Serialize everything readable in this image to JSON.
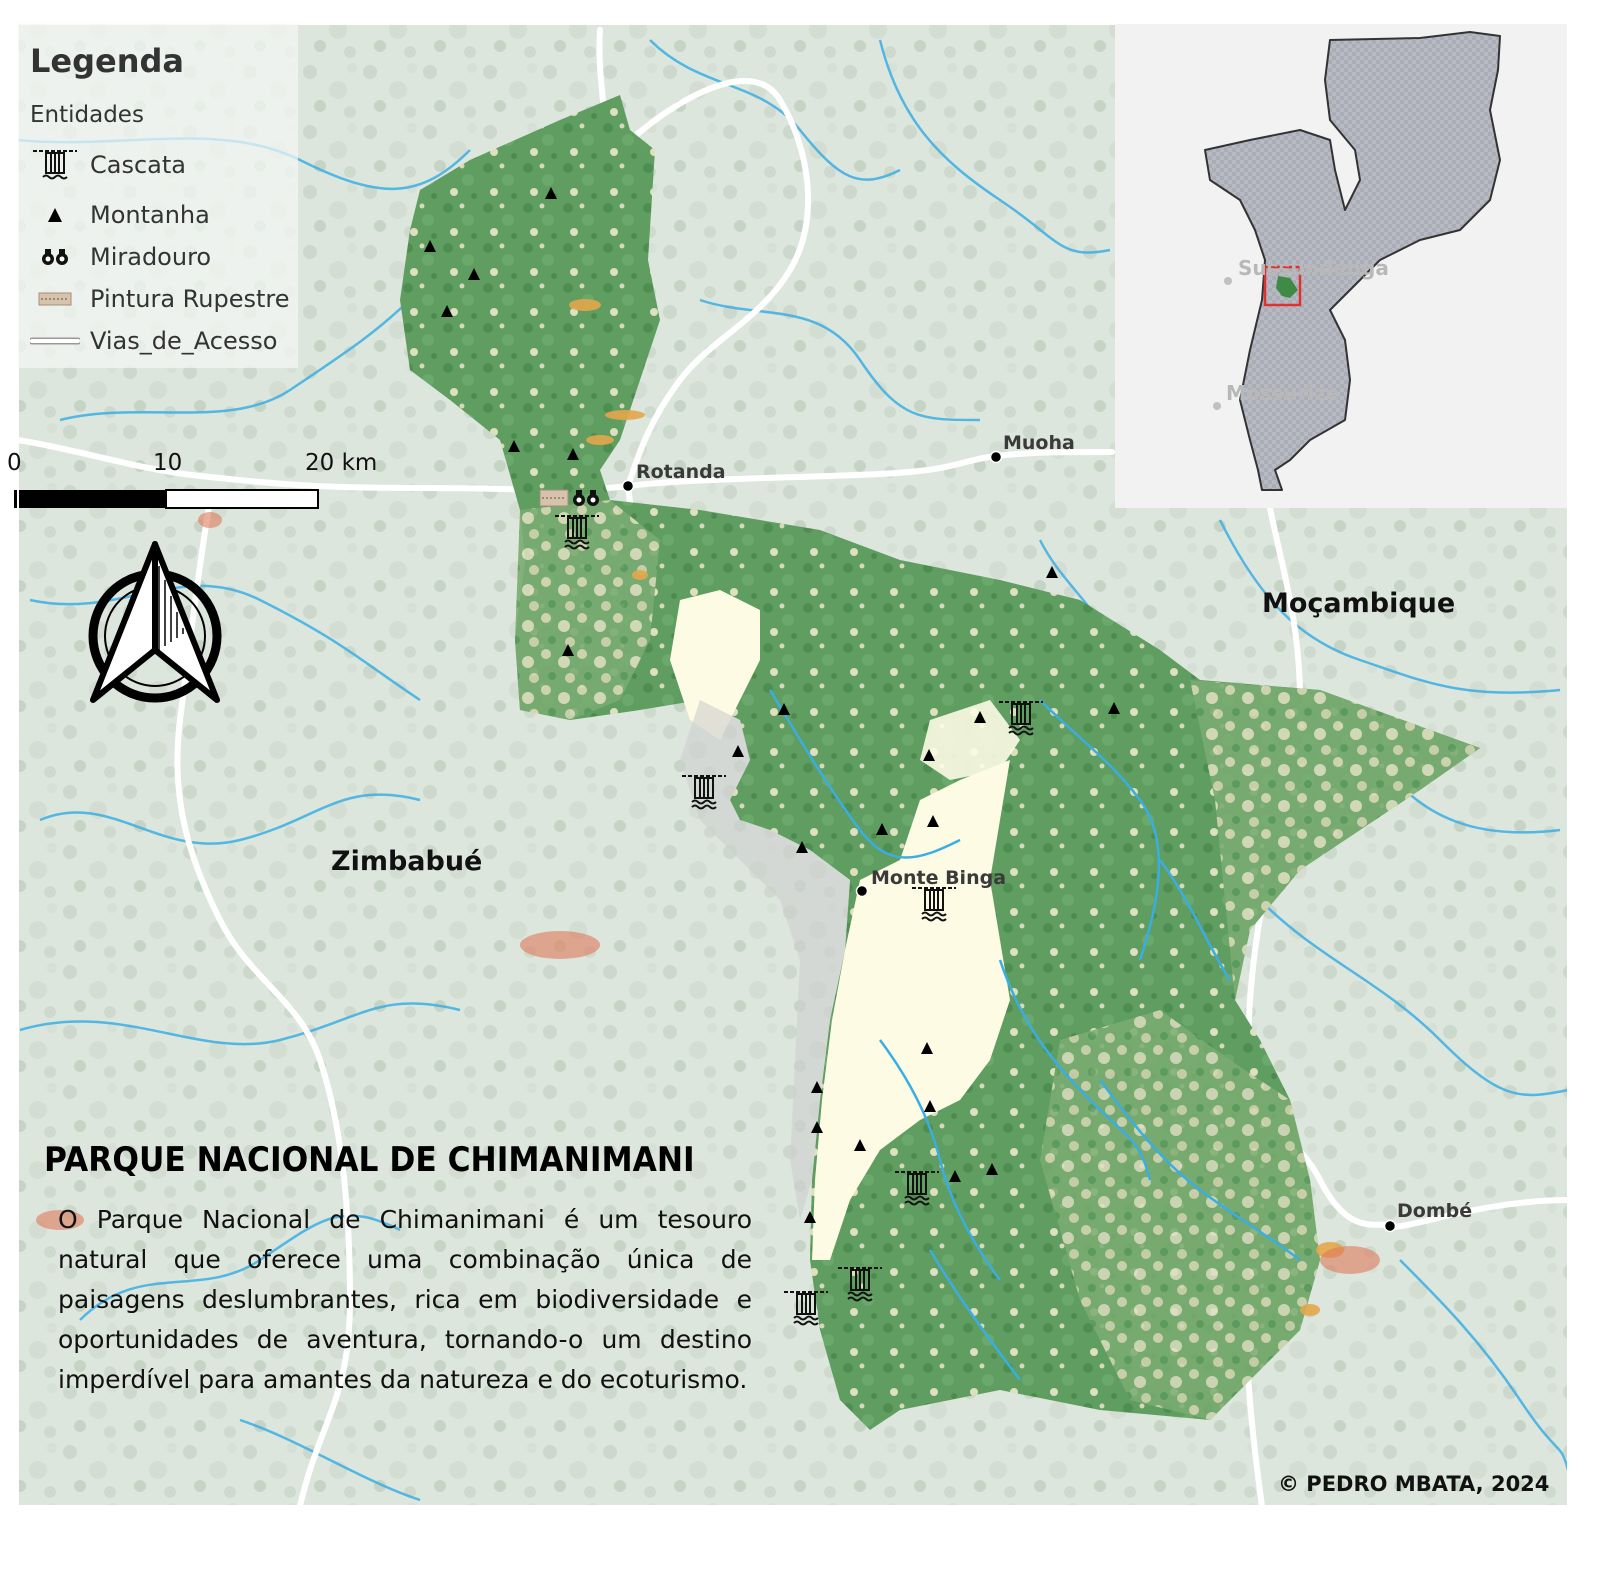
{
  "legend": {
    "title": "Legenda",
    "subtitle": "Entidades",
    "items": [
      {
        "label": "Cascata",
        "icon": "waterfall-icon"
      },
      {
        "label": "Montanha",
        "icon": "mountain-icon"
      },
      {
        "label": "Miradouro",
        "icon": "binoculars-icon"
      },
      {
        "label": "Pintura Rupestre",
        "icon": "rock-painting-icon"
      },
      {
        "label": "Vias_de_Acesso",
        "icon": "road-line-icon"
      }
    ]
  },
  "scale_bar": {
    "labels": [
      "0",
      "10",
      "20 km"
    ]
  },
  "places": {
    "rotanda": "Rotanda",
    "muoha": "Muoha",
    "monte_binga": "Monte Binga",
    "dombe": "Dombé"
  },
  "countries": {
    "mozambique": "Moçambique",
    "zimbabwe": "Zimbabué"
  },
  "inset": {
    "label_1": "Sussundenga",
    "label_2": "Mossurize"
  },
  "title": "PARQUE NACIONAL DE CHIMANIMANI",
  "description": "O Parque Nacional de Chimanimani é um tesouro natural que oferece uma combinação única de paisagens deslumbrantes, rica em biodiversidade e oportunidades de aventura, tornando-o um destino imperdível para amantes da natureza e do ecoturismo.",
  "credit": "© PEDRO MBATA, 2024",
  "colors": {
    "background": "#dfe7df",
    "park_forest": "#5a9a5c",
    "park_open": "#fdfbe6",
    "park_grass": "#dcdcbc",
    "river": "#35a8df",
    "road": "#ffffff",
    "inset_country": "#a8aab4",
    "inset_highlight": "#e03030"
  }
}
